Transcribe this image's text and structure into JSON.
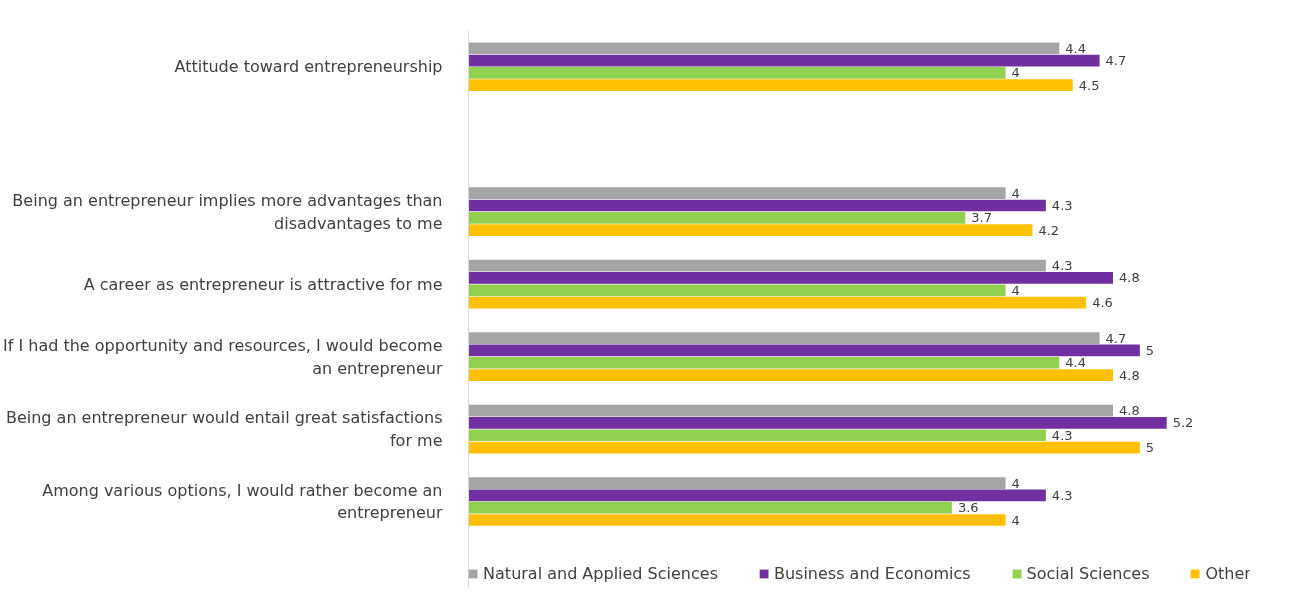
{
  "chart_data": {
    "type": "bar",
    "orientation": "horizontal",
    "categories": [
      "Attitude toward entrepreneurship",
      null,
      "Being an entrepreneur implies more advantages than disadvantages to me",
      "A career as entrepreneur is attractive for me",
      "If I had the opportunity and resources, I would become an entrepreneur",
      "Being an entrepreneur would entail great satisfactions for me",
      "Among various options, I would rather become an entrepreneur"
    ],
    "series": [
      {
        "name": "Natural and Applied Sciences",
        "color": "#a5a5a5",
        "values": [
          4.4,
          null,
          4,
          4.3,
          4.7,
          4.8,
          4
        ]
      },
      {
        "name": "Business and Economics",
        "color": "#7030a0",
        "values": [
          4.7,
          null,
          4.3,
          4.8,
          5,
          5.2,
          4.3
        ]
      },
      {
        "name": "Social Sciences",
        "color": "#92d050",
        "values": [
          4,
          null,
          3.7,
          4,
          4.4,
          4.3,
          3.6
        ]
      },
      {
        "name": "Other",
        "color": "#ffc000",
        "values": [
          4.5,
          null,
          4.2,
          4.6,
          4.8,
          5,
          4
        ]
      }
    ],
    "data_labels": true,
    "grid": false,
    "legend": "bottom",
    "tick_labels": "y"
  }
}
